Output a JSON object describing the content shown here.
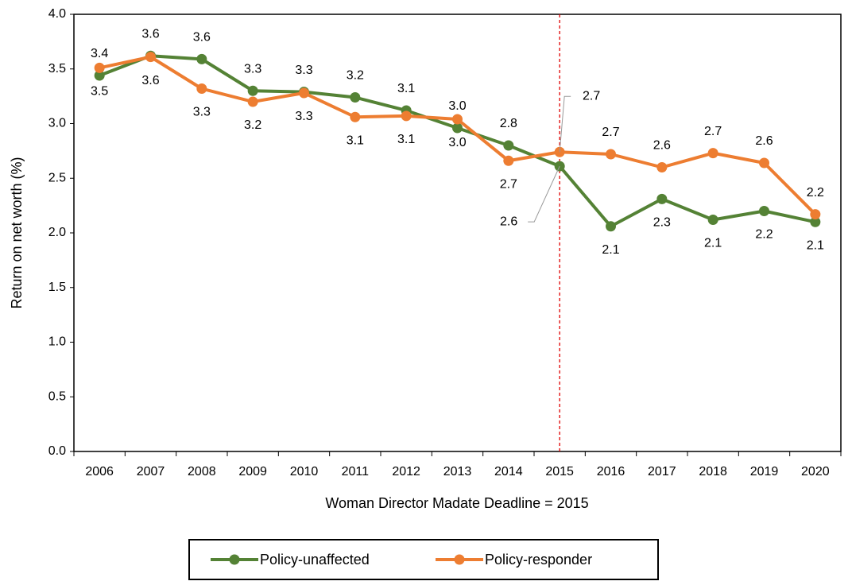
{
  "chart_data": {
    "type": "line",
    "x_label": "Woman Director Madate Deadline = 2015",
    "y_label": "Return on net worth (%)",
    "categories": [
      "2006",
      "2007",
      "2008",
      "2009",
      "2010",
      "2011",
      "2012",
      "2013",
      "2014",
      "2015",
      "2016",
      "2017",
      "2018",
      "2019",
      "2020"
    ],
    "series": [
      {
        "name": "Policy-unaffected",
        "color": "#548235",
        "values": [
          3.44,
          3.62,
          3.59,
          3.3,
          3.29,
          3.24,
          3.12,
          2.96,
          2.8,
          2.61,
          2.06,
          2.31,
          2.12,
          2.2,
          2.1
        ],
        "value_labels": [
          "3.4",
          "3.6",
          "3.6",
          "3.3",
          "3.3",
          "3.2",
          "3.1",
          "3.0",
          "2.8",
          "2.6",
          "2.1",
          "2.3",
          "2.1",
          "2.2",
          "2.1"
        ]
      },
      {
        "name": "Policy-responder",
        "color": "#ED7D31",
        "values": [
          3.51,
          3.61,
          3.32,
          3.2,
          3.28,
          3.06,
          3.07,
          3.04,
          2.66,
          2.74,
          2.72,
          2.6,
          2.73,
          2.64,
          2.17
        ],
        "value_labels": [
          "3.5",
          "3.6",
          "3.3",
          "3.2",
          "3.3",
          "3.1",
          "3.1",
          "3.0",
          "2.7",
          "2.7",
          "2.7",
          "2.6",
          "2.7",
          "2.6",
          "2.2"
        ]
      }
    ],
    "ylim": [
      0,
      4
    ],
    "yticks": [
      {
        "value": 0,
        "label": "0.0"
      },
      0.5,
      {
        "value": 1,
        "label": "1.0"
      },
      1.5,
      {
        "value": 2,
        "label": "2.0"
      },
      2.5,
      {
        "value": 3,
        "label": "3.0"
      },
      3.5,
      {
        "value": 4,
        "label": "4.0"
      }
    ],
    "vline_category": "2015",
    "vline_color": "#E00000",
    "legend": "bottom"
  }
}
